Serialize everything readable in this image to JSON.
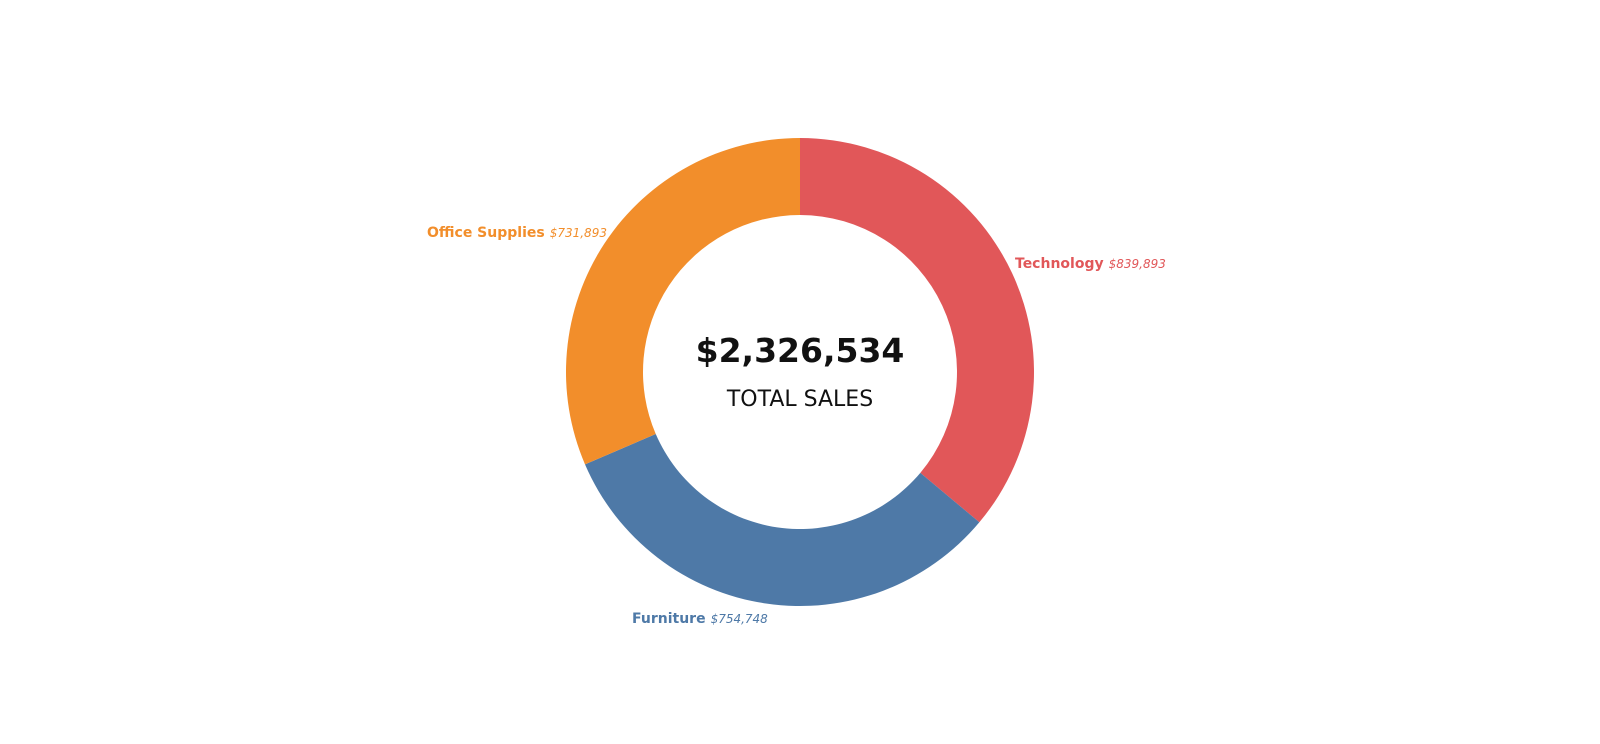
{
  "chart_data": {
    "type": "pie",
    "style": "donut",
    "total_value": "$2,326,534",
    "total_label": "TOTAL SALES",
    "slices": [
      {
        "name": "Technology",
        "value": 839893,
        "value_label": "$839,893",
        "color": "#E15759"
      },
      {
        "name": "Furniture",
        "value": 754748,
        "value_label": "$754,748",
        "color": "#4E79A7"
      },
      {
        "name": "Office Supplies",
        "value": 731893,
        "value_label": "$731,893",
        "color": "#F28E2B"
      }
    ]
  }
}
